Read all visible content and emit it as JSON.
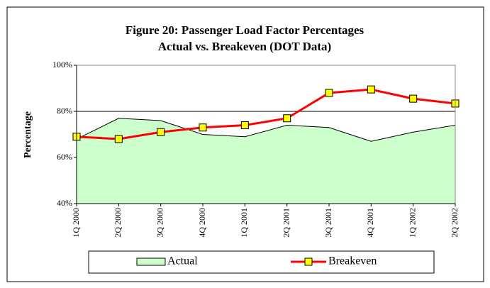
{
  "chart_data": {
    "type": "line",
    "title": [
      "Figure 20:  Passenger Load Factor Percentages",
      "Actual vs. Breakeven  (DOT Data)"
    ],
    "y_label": "Percentage",
    "categories": [
      "1Q 2000",
      "2Q 2000",
      "3Q 2000",
      "4Q 2000",
      "1Q 2001",
      "2Q 2001",
      "3Q 2001",
      "4Q 2001",
      "1Q 2002",
      "2Q 2002"
    ],
    "series": [
      {
        "name": "Actual",
        "type": "area",
        "color": "#ccffcc",
        "values": [
          68,
          77,
          76,
          70,
          69,
          74,
          73,
          67,
          71,
          74
        ]
      },
      {
        "name": "Breakeven",
        "type": "line",
        "color": "#ff0000",
        "marker_color": "#ffff00",
        "values": [
          69,
          68,
          71,
          73,
          74,
          77,
          88,
          89.5,
          85.5,
          83.4
        ]
      }
    ],
    "ylim": [
      40,
      100
    ],
    "yticks": [
      {
        "value": 40,
        "label": "40%"
      },
      {
        "value": 60,
        "label": "60%"
      },
      {
        "value": 80,
        "label": "80%"
      },
      {
        "value": 100,
        "label": "100%"
      }
    ],
    "grid": true,
    "legend": "bottom"
  }
}
